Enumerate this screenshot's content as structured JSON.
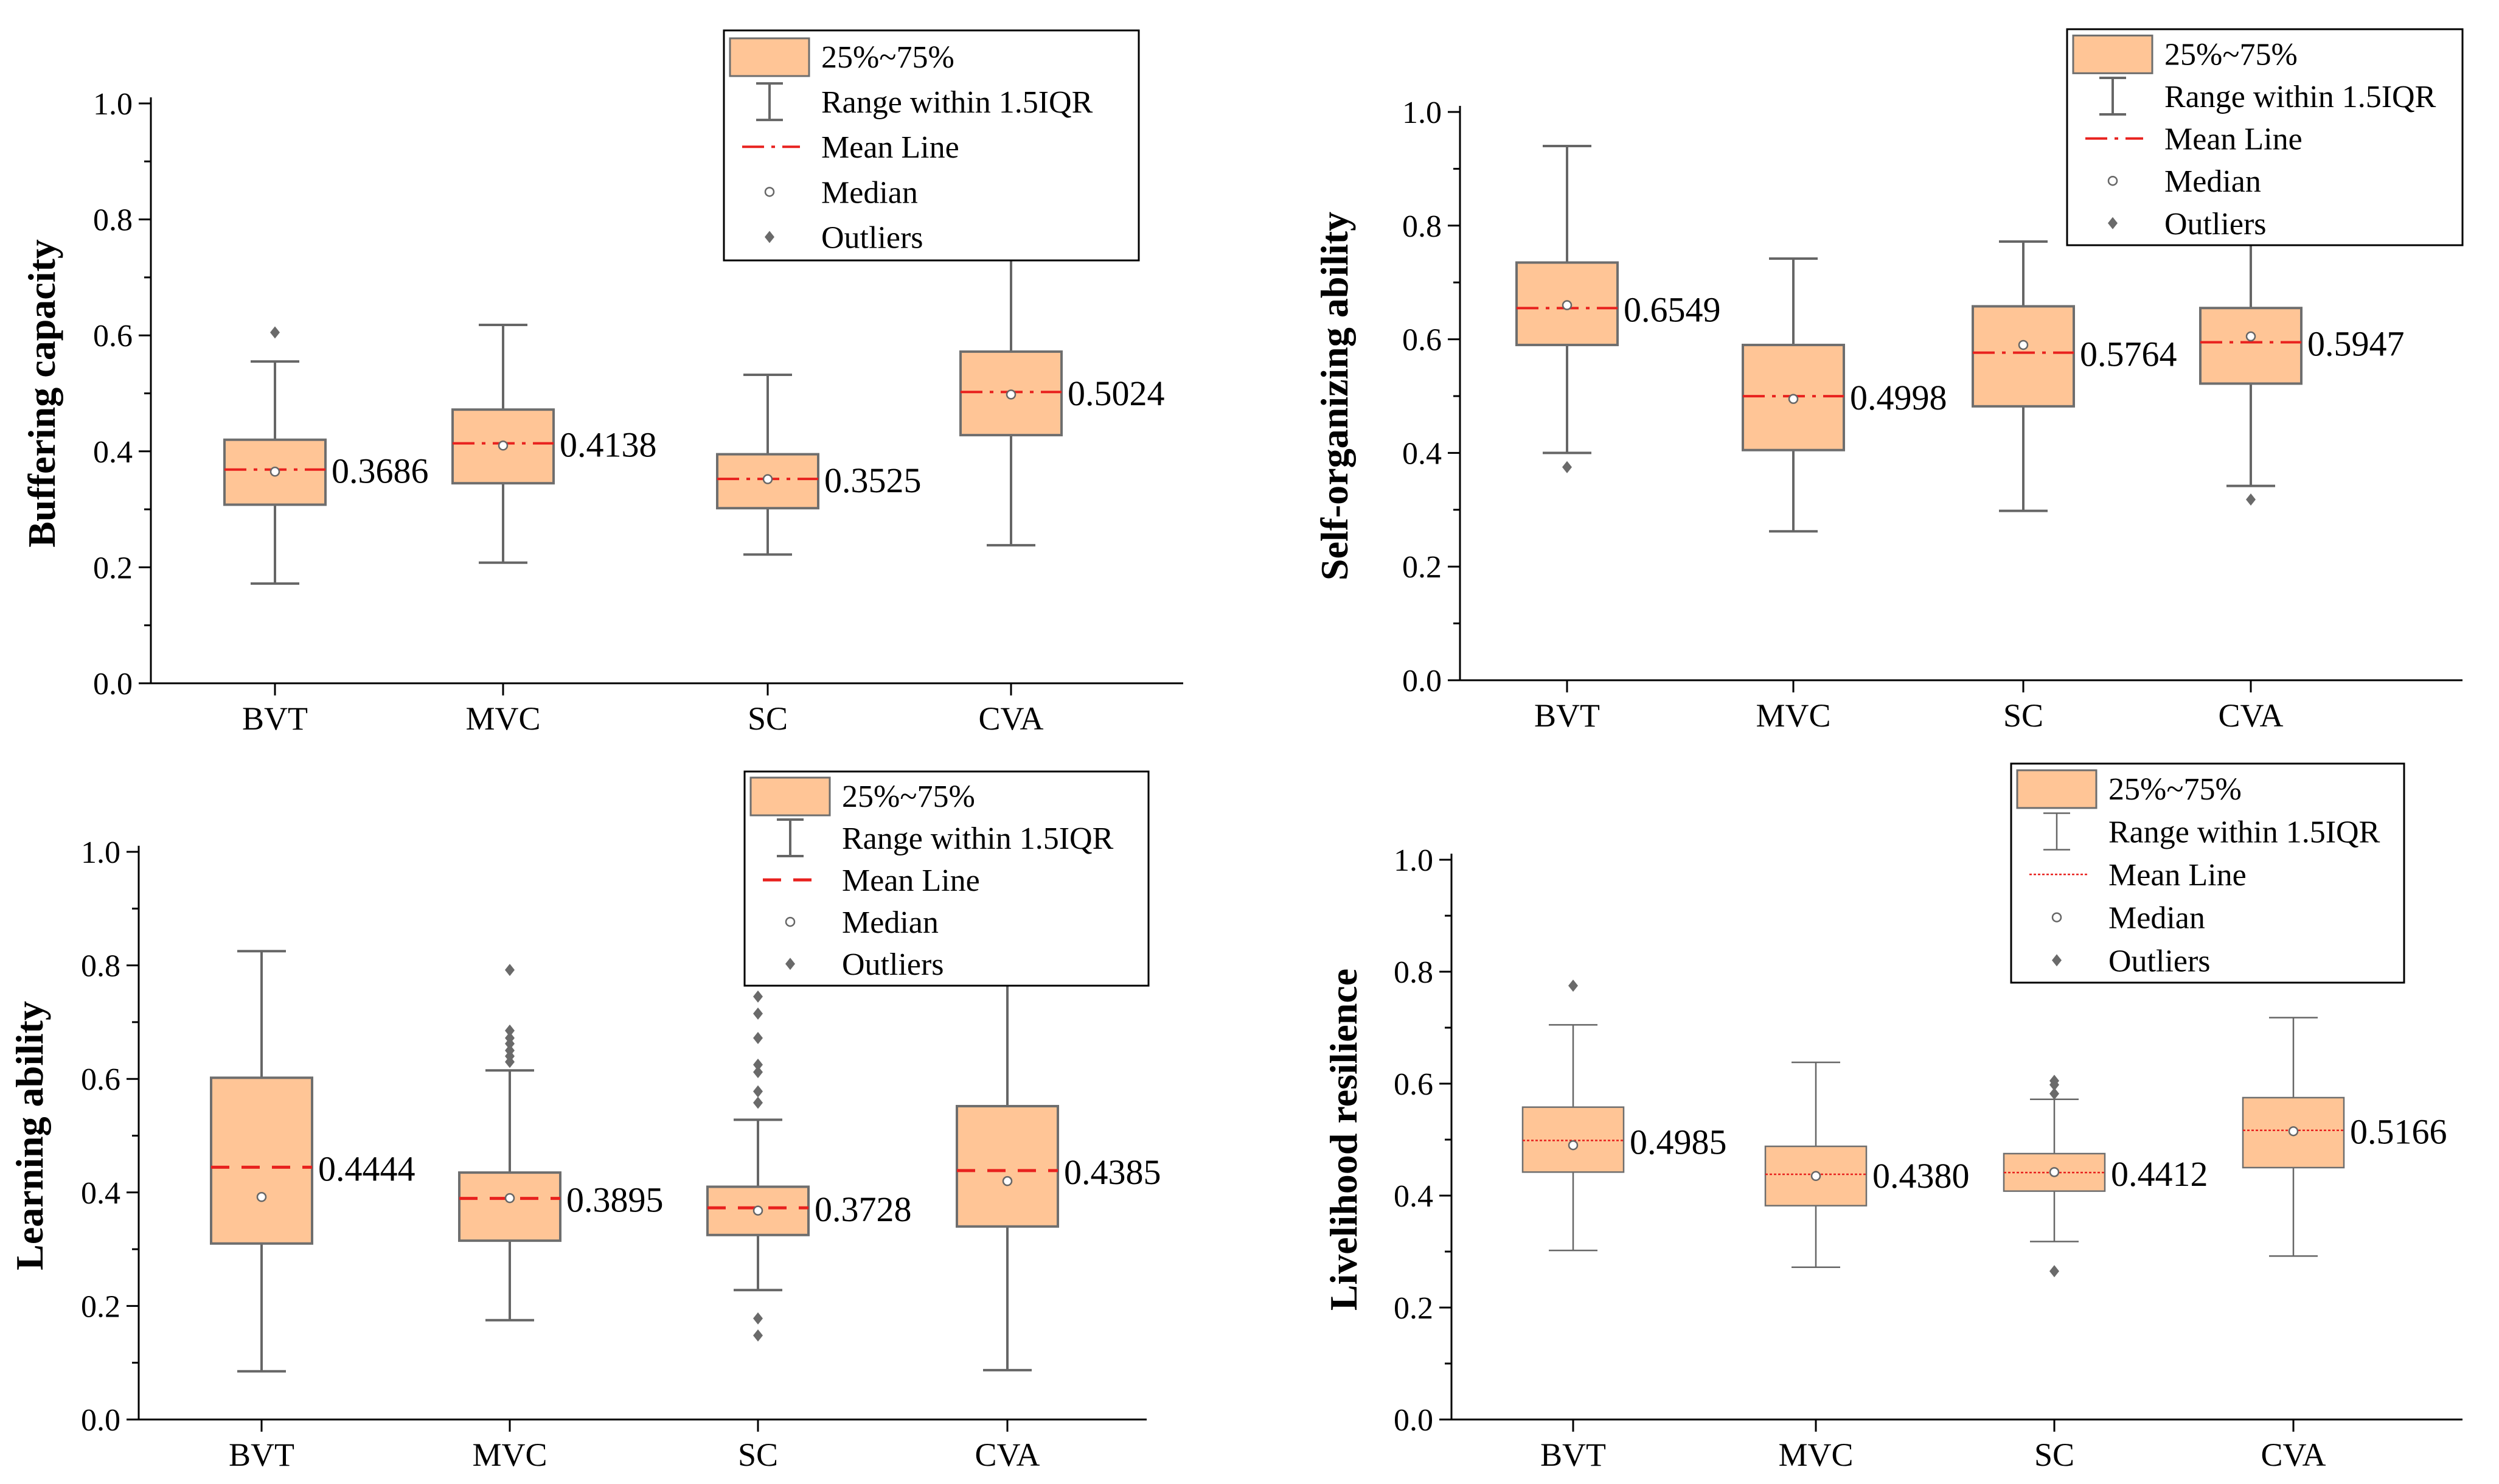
{
  "legend_labels": {
    "box": "25%~75%",
    "range": "Range within 1.5IQR",
    "mean": "Mean Line",
    "median": "Median",
    "outliers": "Outliers"
  },
  "colors": {
    "box_fill": "#FFC596",
    "box_edge": "#6E6E6E",
    "mean_line": "#E8211E",
    "whisker": "#666666",
    "axis": "#000000"
  },
  "chart_data": [
    {
      "type": "box",
      "ylabel": "Buffering capacity",
      "ylim": [
        0,
        1.0
      ],
      "yticks": [
        "0.0",
        "0.2",
        "0.4",
        "0.6",
        "0.8",
        "1.0"
      ],
      "categories": [
        "BVT",
        "MVC",
        "SC",
        "CVA"
      ],
      "mean_style": "dashdot",
      "boxes": [
        {
          "q1": 0.308,
          "q3": 0.42,
          "median": 0.365,
          "mean": 0.3686,
          "whisker_low": 0.172,
          "whisker_high": 0.555,
          "outliers": [
            0.605
          ],
          "mean_label": "0.3686"
        },
        {
          "q1": 0.345,
          "q3": 0.472,
          "median": 0.41,
          "mean": 0.4138,
          "whisker_low": 0.208,
          "whisker_high": 0.618,
          "outliers": [],
          "mean_label": "0.4138"
        },
        {
          "q1": 0.302,
          "q3": 0.395,
          "median": 0.352,
          "mean": 0.3525,
          "whisker_low": 0.222,
          "whisker_high": 0.532,
          "outliers": [],
          "mean_label": "0.3525"
        },
        {
          "q1": 0.428,
          "q3": 0.572,
          "median": 0.498,
          "mean": 0.5024,
          "whisker_low": 0.238,
          "whisker_high": 0.735,
          "outliers": [],
          "mean_label": "0.5024"
        }
      ]
    },
    {
      "type": "box",
      "ylabel": "Self-organizing ability",
      "ylim": [
        0,
        1.0
      ],
      "yticks": [
        "0.0",
        "0.2",
        "0.4",
        "0.6",
        "0.8",
        "1.0"
      ],
      "categories": [
        "BVT",
        "MVC",
        "SC",
        "CVA"
      ],
      "mean_style": "dashdot",
      "boxes": [
        {
          "q1": 0.59,
          "q3": 0.735,
          "median": 0.66,
          "mean": 0.6549,
          "whisker_low": 0.4,
          "whisker_high": 0.94,
          "outliers": [
            0.375
          ],
          "mean_label": "0.6549"
        },
        {
          "q1": 0.405,
          "q3": 0.59,
          "median": 0.495,
          "mean": 0.4998,
          "whisker_low": 0.262,
          "whisker_high": 0.742,
          "outliers": [],
          "mean_label": "0.4998"
        },
        {
          "q1": 0.482,
          "q3": 0.658,
          "median": 0.59,
          "mean": 0.5764,
          "whisker_low": 0.298,
          "whisker_high": 0.772,
          "outliers": [],
          "mean_label": "0.5764"
        },
        {
          "q1": 0.522,
          "q3": 0.655,
          "median": 0.605,
          "mean": 0.5947,
          "whisker_low": 0.342,
          "whisker_high": 0.775,
          "outliers": [
            0.318
          ],
          "mean_label": "0.5947"
        }
      ]
    },
    {
      "type": "box",
      "ylabel": "Learning ability",
      "ylim": [
        0,
        1.0
      ],
      "yticks": [
        "0.0",
        "0.2",
        "0.4",
        "0.6",
        "0.8",
        "1.0"
      ],
      "categories": [
        "BVT",
        "MVC",
        "SC",
        "CVA"
      ],
      "mean_style": "dashed",
      "boxes": [
        {
          "q1": 0.31,
          "q3": 0.602,
          "median": 0.392,
          "mean": 0.4444,
          "whisker_low": 0.085,
          "whisker_high": 0.825,
          "outliers": [],
          "mean_label": "0.4444"
        },
        {
          "q1": 0.315,
          "q3": 0.435,
          "median": 0.39,
          "mean": 0.3895,
          "whisker_low": 0.175,
          "whisker_high": 0.615,
          "outliers": [
            0.63,
            0.64,
            0.65,
            0.662,
            0.672,
            0.685,
            0.792
          ],
          "mean_label": "0.3895"
        },
        {
          "q1": 0.325,
          "q3": 0.41,
          "median": 0.368,
          "mean": 0.3728,
          "whisker_low": 0.228,
          "whisker_high": 0.528,
          "outliers": [
            0.148,
            0.178,
            0.558,
            0.578,
            0.612,
            0.625,
            0.672,
            0.715,
            0.745
          ],
          "mean_label": "0.3728"
        },
        {
          "q1": 0.34,
          "q3": 0.552,
          "median": 0.42,
          "mean": 0.4385,
          "whisker_low": 0.087,
          "whisker_high": 0.8,
          "outliers": [],
          "mean_label": "0.4385"
        }
      ]
    },
    {
      "type": "box",
      "ylabel": "Livelihood resilience",
      "ylim": [
        0,
        1.0
      ],
      "yticks": [
        "0.0",
        "0.2",
        "0.4",
        "0.6",
        "0.8",
        "1.0"
      ],
      "categories": [
        "BVT",
        "MVC",
        "SC",
        "CVA"
      ],
      "mean_style": "dotted",
      "boxes": [
        {
          "q1": 0.442,
          "q3": 0.558,
          "median": 0.49,
          "mean": 0.4985,
          "whisker_low": 0.302,
          "whisker_high": 0.705,
          "outliers": [
            0.775
          ],
          "mean_label": "0.4985"
        },
        {
          "q1": 0.382,
          "q3": 0.488,
          "median": 0.435,
          "mean": 0.438,
          "whisker_low": 0.272,
          "whisker_high": 0.638,
          "outliers": [],
          "mean_label": "0.4380"
        },
        {
          "q1": 0.408,
          "q3": 0.475,
          "median": 0.442,
          "mean": 0.4412,
          "whisker_low": 0.318,
          "whisker_high": 0.572,
          "outliers": [
            0.265,
            0.582,
            0.598,
            0.605
          ],
          "mean_label": "0.4412"
        },
        {
          "q1": 0.45,
          "q3": 0.575,
          "median": 0.515,
          "mean": 0.5166,
          "whisker_low": 0.292,
          "whisker_high": 0.718,
          "outliers": [],
          "mean_label": "0.5166"
        }
      ]
    }
  ]
}
